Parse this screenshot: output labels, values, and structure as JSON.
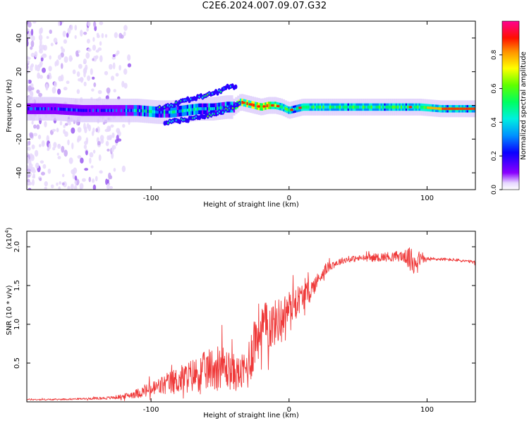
{
  "figure_title": "C2E6.2024.007.09.07.G32",
  "colors": {
    "snr_line": "#ef3a3a",
    "colormap": [
      "#ffffff",
      "#6a00ff",
      "#0040ff",
      "#00e0ff",
      "#00ff80",
      "#40ff00",
      "#ffff00",
      "#ff8000",
      "#ff0000",
      "#ff0090"
    ]
  },
  "chart_data": [
    {
      "type": "heatmap",
      "title": "",
      "xlabel": "Height of straight line (km)",
      "ylabel": "Frequency (Hz)",
      "xlim": [
        -190,
        135
      ],
      "ylim": [
        -50,
        50
      ],
      "x_ticks": [
        -100,
        0,
        100
      ],
      "x_tick_labels": [
        "-100",
        "0",
        "100"
      ],
      "y_ticks": [
        -40,
        -20,
        0,
        20,
        40
      ],
      "y_tick_labels": [
        "-40",
        "-20",
        "0",
        "20",
        "40"
      ],
      "colorbar": {
        "label": "Normalized spectral amplitude",
        "range": [
          0,
          1
        ],
        "ticks": [
          0.0,
          0.2,
          0.4,
          0.6,
          0.8
        ],
        "tick_labels": [
          "0.0",
          "0.2",
          "0.4",
          "0.6",
          "0.8"
        ]
      },
      "ridge": {
        "x": [
          -190,
          -170,
          -150,
          -130,
          -110,
          -95,
          -85,
          -75,
          -65,
          -55,
          -45,
          -40,
          -35,
          -30,
          -25,
          -20,
          -15,
          -10,
          -5,
          0,
          5,
          10,
          20,
          40,
          60,
          80,
          88,
          95,
          110,
          135
        ],
        "frequency": [
          -2,
          -2,
          -3,
          -3,
          -3,
          -4,
          -4,
          -3,
          -2,
          -2,
          -1,
          -1,
          2,
          1,
          0,
          -1,
          0,
          0,
          -1,
          -3,
          -2,
          -1,
          -1,
          -1,
          -1,
          -1,
          -1,
          -1,
          -2,
          -2
        ]
      },
      "upper_branch": {
        "x": [
          -95,
          -85,
          -75,
          -65,
          -55,
          -48,
          -42,
          -38
        ],
        "frequency": [
          -2,
          0,
          3,
          5,
          7,
          9,
          12,
          10
        ]
      },
      "lower_branch": {
        "x": [
          -90,
          -80,
          -70,
          -60,
          -50,
          -40,
          -35
        ],
        "frequency": [
          -10,
          -9,
          -8,
          -6,
          -4,
          -1,
          1
        ]
      }
    },
    {
      "type": "line",
      "title": "",
      "xlabel": "Height of straight line (km)",
      "ylabel": "SNR (10 * v/v)",
      "y_multiplier": "(x10",
      "y_multiplier_exponent": "4",
      "xlim": [
        -190,
        135
      ],
      "ylim": [
        0.0,
        2.2
      ],
      "x_ticks": [
        -100,
        0,
        100
      ],
      "x_tick_labels": [
        "-100",
        "0",
        "100"
      ],
      "y_ticks": [
        0.5,
        1.0,
        1.5,
        2.0
      ],
      "y_tick_labels": [
        "0.5",
        "1.0",
        "1.5",
        "2.0"
      ],
      "series": [
        {
          "x": [
            -190,
            -170,
            -150,
            -130,
            -120,
            -110,
            -100,
            -90,
            -80,
            -70,
            -60,
            -55,
            -50,
            -45,
            -40,
            -35,
            -30,
            -28,
            -25,
            -22,
            -20,
            -15,
            -10,
            -5,
            0,
            5,
            10,
            15,
            20,
            25,
            30,
            40,
            50,
            60,
            70,
            80,
            85,
            88,
            90,
            92,
            95,
            100,
            110,
            120,
            130,
            135
          ],
          "y": [
            0.03,
            0.03,
            0.04,
            0.05,
            0.07,
            0.11,
            0.16,
            0.22,
            0.28,
            0.34,
            0.4,
            0.44,
            0.48,
            0.42,
            0.38,
            0.36,
            0.44,
            0.6,
            0.8,
            0.92,
            0.95,
            0.98,
            1.02,
            1.1,
            1.22,
            1.3,
            1.36,
            1.42,
            1.55,
            1.68,
            1.76,
            1.83,
            1.85,
            1.86,
            1.87,
            1.88,
            1.87,
            1.82,
            1.78,
            1.85,
            1.84,
            1.84,
            1.84,
            1.83,
            1.81,
            1.8
          ],
          "noise_amplitude": [
            0.01,
            0.01,
            0.01,
            0.02,
            0.03,
            0.06,
            0.1,
            0.14,
            0.18,
            0.22,
            0.26,
            0.28,
            0.3,
            0.26,
            0.24,
            0.22,
            0.3,
            0.36,
            0.4,
            0.36,
            0.34,
            0.32,
            0.3,
            0.26,
            0.22,
            0.2,
            0.18,
            0.14,
            0.1,
            0.08,
            0.06,
            0.04,
            0.04,
            0.05,
            0.06,
            0.07,
            0.09,
            0.18,
            0.22,
            0.16,
            0.08,
            0.03,
            0.02,
            0.02,
            0.02,
            0.02
          ]
        }
      ]
    }
  ]
}
